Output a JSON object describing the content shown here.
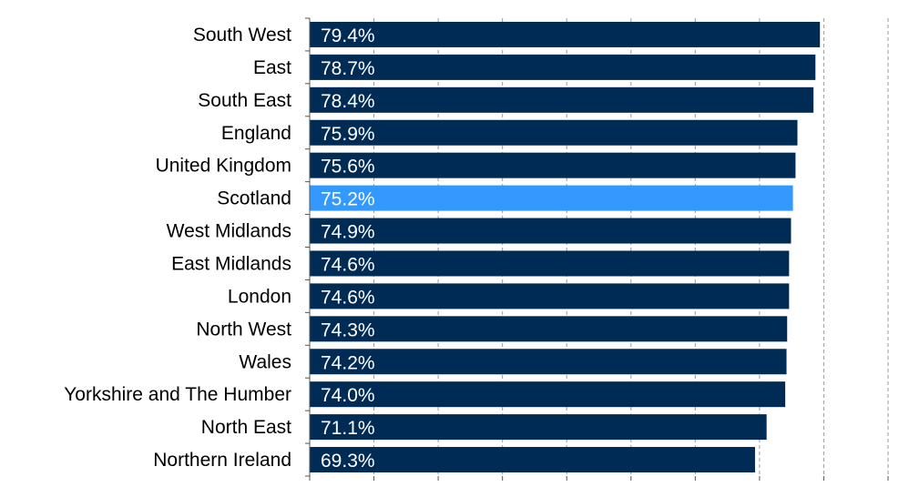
{
  "chart_data": {
    "type": "bar",
    "orientation": "horizontal",
    "categories": [
      "South West",
      "East",
      "South East",
      "England",
      "United Kingdom",
      "Scotland",
      "West Midlands",
      "East Midlands",
      "London",
      "North West ",
      "Wales",
      "Yorkshire and The Humber",
      "North East",
      "Northern Ireland "
    ],
    "values": [
      79.4,
      78.7,
      78.4,
      75.9,
      75.6,
      75.2,
      74.9,
      74.6,
      74.6,
      74.3,
      74.2,
      74.0,
      71.1,
      69.3
    ],
    "value_labels": [
      "79.4%",
      "78.7%",
      "78.4%",
      "75.9%",
      "75.6%",
      "75.2%",
      "74.9%",
      "74.6%",
      "74.6%",
      "74.3%",
      "74.2%",
      "74.0%",
      "71.1%",
      "69.3%"
    ],
    "highlight": "Scotland",
    "colors": {
      "bar": "#002B54",
      "highlight": "#3399FF"
    },
    "xlim": [
      0,
      90
    ],
    "grid": true,
    "legend": "none"
  }
}
